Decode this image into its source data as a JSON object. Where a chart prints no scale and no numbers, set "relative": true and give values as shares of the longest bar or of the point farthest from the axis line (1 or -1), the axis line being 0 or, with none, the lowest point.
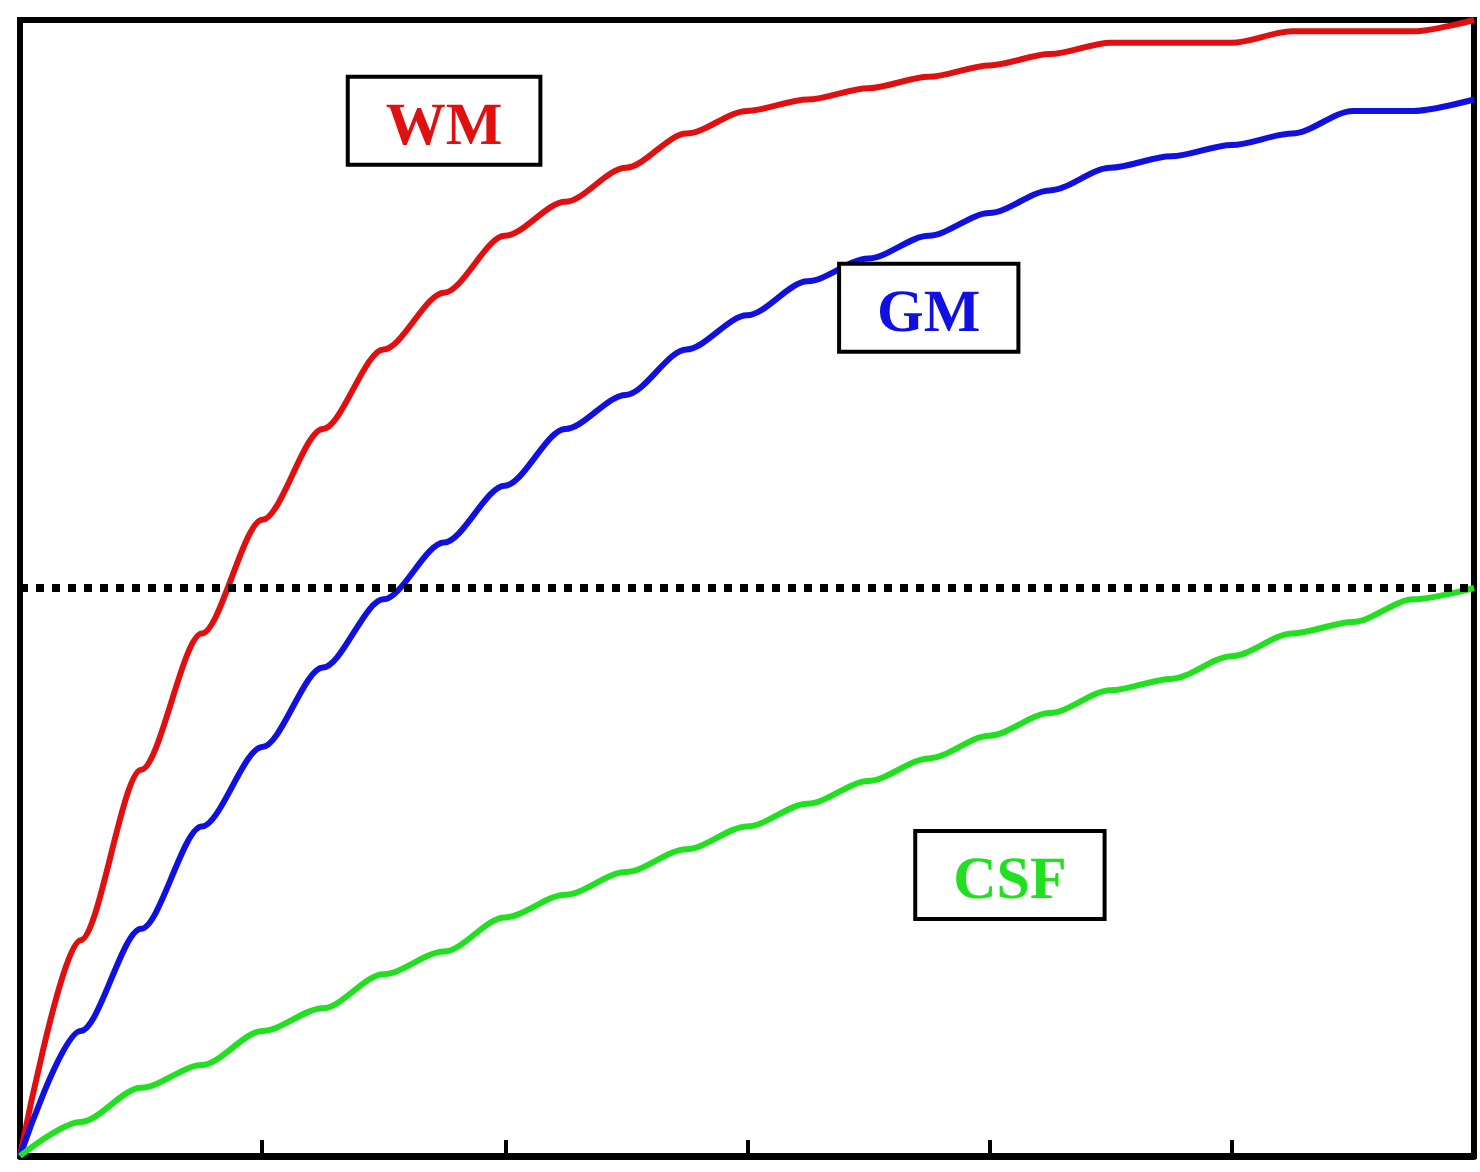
{
  "chart_data": {
    "type": "line",
    "relative": true,
    "categories": [
      null,
      null,
      null,
      null,
      null,
      null,
      null,
      null,
      null,
      null,
      null,
      null,
      null,
      null,
      null,
      null,
      null,
      null,
      null,
      null,
      null,
      null,
      null,
      null,
      null
    ],
    "series": [
      {
        "name": "WM",
        "color": "#e01010",
        "values": [
          0,
          0.19,
          0.34,
          0.46,
          0.56,
          0.64,
          0.71,
          0.76,
          0.81,
          0.84,
          0.87,
          0.9,
          0.92,
          0.93,
          0.94,
          0.95,
          0.96,
          0.97,
          0.98,
          0.98,
          0.98,
          0.99,
          0.99,
          0.99,
          1
        ]
      },
      {
        "name": "GM",
        "color": "#1010e0",
        "values": [
          0,
          0.11,
          0.2,
          0.29,
          0.36,
          0.43,
          0.49,
          0.54,
          0.59,
          0.64,
          0.67,
          0.71,
          0.74,
          0.77,
          0.79,
          0.81,
          0.83,
          0.85,
          0.87,
          0.88,
          0.89,
          0.9,
          0.92,
          0.92,
          0.93
        ]
      },
      {
        "name": "CSF",
        "color": "#20e020",
        "values": [
          0,
          0.03,
          0.06,
          0.08,
          0.11,
          0.13,
          0.16,
          0.18,
          0.21,
          0.23,
          0.25,
          0.27,
          0.29,
          0.31,
          0.33,
          0.35,
          0.37,
          0.39,
          0.41,
          0.42,
          0.44,
          0.46,
          0.47,
          0.49,
          0.5
        ]
      }
    ],
    "ref_lines": [
      {
        "axis": "y",
        "value": 0.5,
        "color": "#000000",
        "line_style": "dotted"
      }
    ],
    "legend": false,
    "grid": false,
    "marker": "none",
    "line_style": "solid"
  }
}
